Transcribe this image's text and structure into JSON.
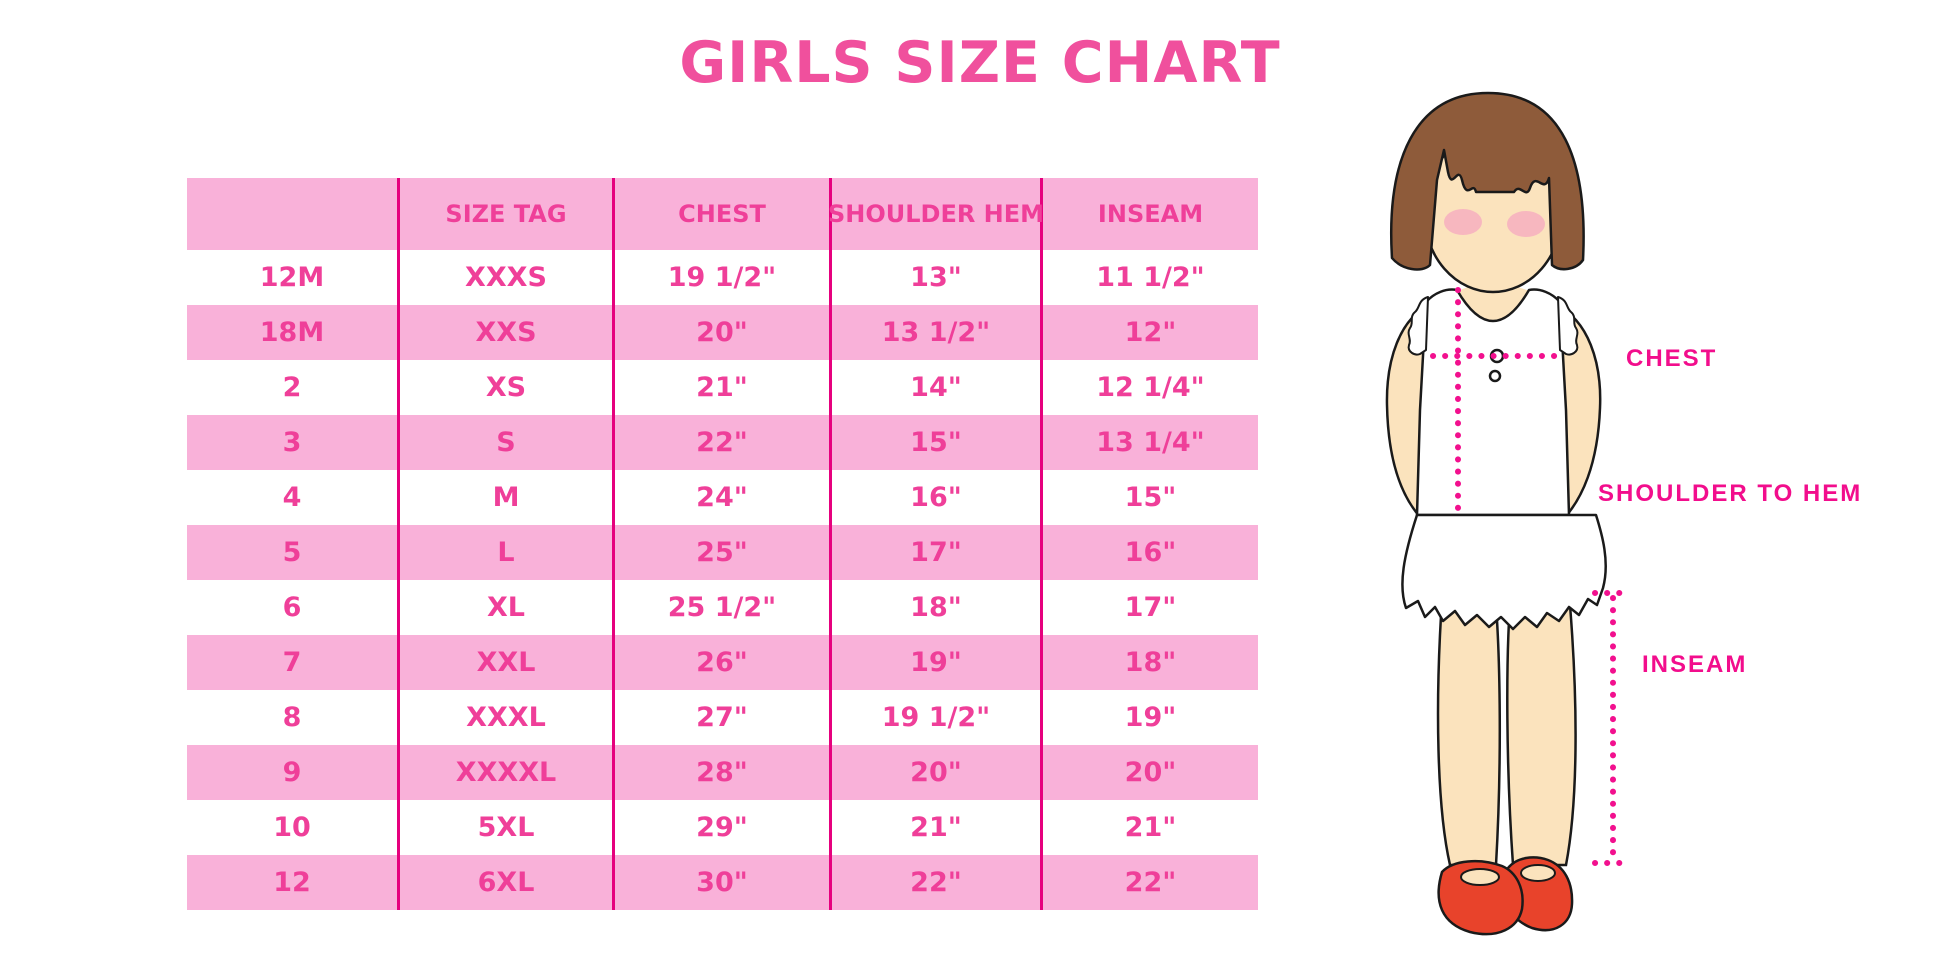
{
  "title": "GIRLS SIZE CHART",
  "table": {
    "headers": [
      "",
      "SIZE TAG",
      "CHEST",
      "SHOULDER HEM",
      "INSEAM"
    ],
    "rows": [
      [
        "12M",
        "XXXS",
        "19 1/2\"",
        "13\"",
        "11 1/2\""
      ],
      [
        "18M",
        "XXS",
        "20\"",
        "13 1/2\"",
        "12\""
      ],
      [
        "2",
        "XS",
        "21\"",
        "14\"",
        "12 1/4\""
      ],
      [
        "3",
        "S",
        "22\"",
        "15\"",
        "13 1/4\""
      ],
      [
        "4",
        "M",
        "24\"",
        "16\"",
        "15\""
      ],
      [
        "5",
        "L",
        "25\"",
        "17\"",
        "16\""
      ],
      [
        "6",
        "XL",
        "25 1/2\"",
        "18\"",
        "17\""
      ],
      [
        "7",
        "XXL",
        "26\"",
        "19\"",
        "18\""
      ],
      [
        "8",
        "XXXL",
        "27\"",
        "19 1/2\"",
        "19\""
      ],
      [
        "9",
        "XXXXL",
        "28\"",
        "20\"",
        "20\""
      ],
      [
        "10",
        "5XL",
        "29\"",
        "21\"",
        "21\""
      ],
      [
        "12",
        "6XL",
        "30\"",
        "22\"",
        "22\""
      ]
    ]
  },
  "diagram": {
    "labels": {
      "chest": "CHEST",
      "shoulder_to_hem": "SHOULDER TO HEM",
      "inseam": "INSEAM"
    }
  },
  "colors": {
    "title_pink": "#F0509D",
    "table_text_pink": "#EF3F99",
    "row_band_pink": "#F9B1D9",
    "divider_magenta": "#E6007E",
    "label_magenta": "#F20D8C",
    "hair_brown": "#8E5B3A",
    "skin": "#FBE3BD",
    "shoe_red": "#E8432B"
  }
}
